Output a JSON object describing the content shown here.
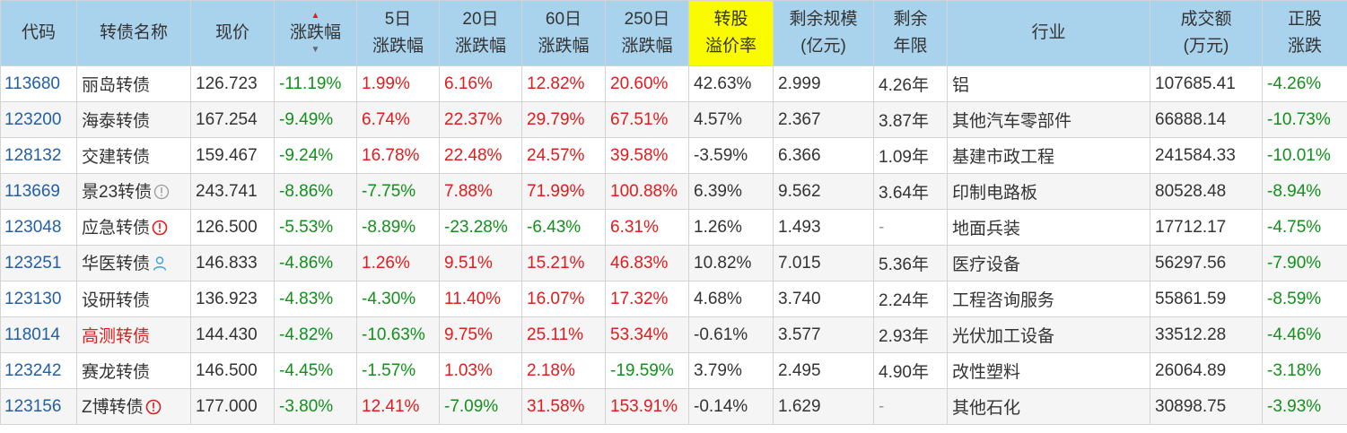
{
  "headers": {
    "code": "代码",
    "name": "转债名称",
    "price": "现价",
    "change": "涨跌幅",
    "d5_line1": "5日",
    "d5_line2": "涨跌幅",
    "d20_line1": "20日",
    "d20_line2": "涨跌幅",
    "d60_line1": "60日",
    "d60_line2": "涨跌幅",
    "d250_line1": "250日",
    "d250_line2": "涨跌幅",
    "premium_line1": "转股",
    "premium_line2": "溢价率",
    "scale_line1": "剩余规模",
    "scale_line2": "(亿元)",
    "years_line1": "剩余",
    "years_line2": "年限",
    "industry": "行业",
    "volume_line1": "成交额",
    "volume_line2": "(万元)",
    "stock_line1": "正股",
    "stock_line2": "涨跌"
  },
  "colors": {
    "header_bg": "#a9d2ec",
    "highlight_bg": "#fbfb00",
    "up": "#e21b1b",
    "down": "#119119",
    "code": "#2060a8"
  },
  "rows": [
    {
      "code": "113680",
      "name": "丽岛转债",
      "name_red": false,
      "icon": "",
      "price": "126.723",
      "change": "-11.19%",
      "d5": "1.99%",
      "d20": "6.16%",
      "d60": "12.82%",
      "d250": "20.60%",
      "premium": "42.63%",
      "scale": "2.999",
      "years": "4.26年",
      "industry": "铝",
      "volume": "107685.41",
      "stock": "-4.26%"
    },
    {
      "code": "123200",
      "name": "海泰转债",
      "name_red": false,
      "icon": "",
      "price": "167.254",
      "change": "-9.49%",
      "d5": "6.74%",
      "d20": "22.37%",
      "d60": "29.79%",
      "d250": "67.51%",
      "premium": "4.57%",
      "scale": "2.367",
      "years": "3.87年",
      "industry": "其他汽车零部件",
      "volume": "66888.14",
      "stock": "-10.73%"
    },
    {
      "code": "128132",
      "name": "交建转债",
      "name_red": false,
      "icon": "",
      "price": "159.467",
      "change": "-9.24%",
      "d5": "16.78%",
      "d20": "22.48%",
      "d60": "24.57%",
      "d250": "39.58%",
      "premium": "-3.59%",
      "scale": "6.366",
      "years": "1.09年",
      "industry": "基建市政工程",
      "volume": "241584.33",
      "stock": "-10.01%"
    },
    {
      "code": "113669",
      "name": "景23转债",
      "name_red": false,
      "icon": "info-gray",
      "price": "243.741",
      "change": "-8.86%",
      "d5": "-7.75%",
      "d20": "7.88%",
      "d60": "71.99%",
      "d250": "100.88%",
      "premium": "6.39%",
      "scale": "9.562",
      "years": "3.64年",
      "industry": "印制电路板",
      "volume": "80528.48",
      "stock": "-8.94%"
    },
    {
      "code": "123048",
      "name": "应急转债",
      "name_red": false,
      "icon": "alert-red",
      "price": "126.500",
      "change": "-5.53%",
      "d5": "-8.89%",
      "d20": "-23.28%",
      "d60": "-6.43%",
      "d250": "6.31%",
      "premium": "1.26%",
      "scale": "1.493",
      "years": "-",
      "industry": "地面兵装",
      "volume": "17712.17",
      "stock": "-4.75%"
    },
    {
      "code": "123251",
      "name": "华医转债",
      "name_red": false,
      "icon": "user-blue",
      "price": "146.833",
      "change": "-4.86%",
      "d5": "1.26%",
      "d20": "9.51%",
      "d60": "15.21%",
      "d250": "46.83%",
      "premium": "10.82%",
      "scale": "7.015",
      "years": "5.36年",
      "industry": "医疗设备",
      "volume": "56297.56",
      "stock": "-7.90%"
    },
    {
      "code": "123130",
      "name": "设研转债",
      "name_red": false,
      "icon": "",
      "price": "136.923",
      "change": "-4.83%",
      "d5": "-4.30%",
      "d20": "11.40%",
      "d60": "16.07%",
      "d250": "17.32%",
      "premium": "4.68%",
      "scale": "3.740",
      "years": "2.24年",
      "industry": "工程咨询服务",
      "volume": "55861.59",
      "stock": "-8.59%"
    },
    {
      "code": "118014",
      "name": "高测转债",
      "name_red": true,
      "icon": "",
      "price": "144.430",
      "change": "-4.82%",
      "d5": "-10.63%",
      "d20": "9.75%",
      "d60": "25.11%",
      "d250": "53.34%",
      "premium": "-0.61%",
      "scale": "3.577",
      "years": "2.93年",
      "industry": "光伏加工设备",
      "volume": "33512.28",
      "stock": "-4.46%"
    },
    {
      "code": "123242",
      "name": "赛龙转债",
      "name_red": false,
      "icon": "",
      "price": "146.500",
      "change": "-4.45%",
      "d5": "-1.57%",
      "d20": "1.03%",
      "d60": "2.18%",
      "d250": "-19.59%",
      "premium": "3.79%",
      "scale": "2.495",
      "years": "4.90年",
      "industry": "改性塑料",
      "volume": "26064.89",
      "stock": "-3.18%"
    },
    {
      "code": "123156",
      "name": "Z博转债",
      "name_red": false,
      "icon": "alert-red",
      "price": "177.000",
      "change": "-3.80%",
      "d5": "12.41%",
      "d20": "-7.09%",
      "d60": "31.58%",
      "d250": "153.91%",
      "premium": "-0.14%",
      "scale": "1.629",
      "years": "-",
      "industry": "其他石化",
      "volume": "30898.75",
      "stock": "-3.93%"
    }
  ]
}
